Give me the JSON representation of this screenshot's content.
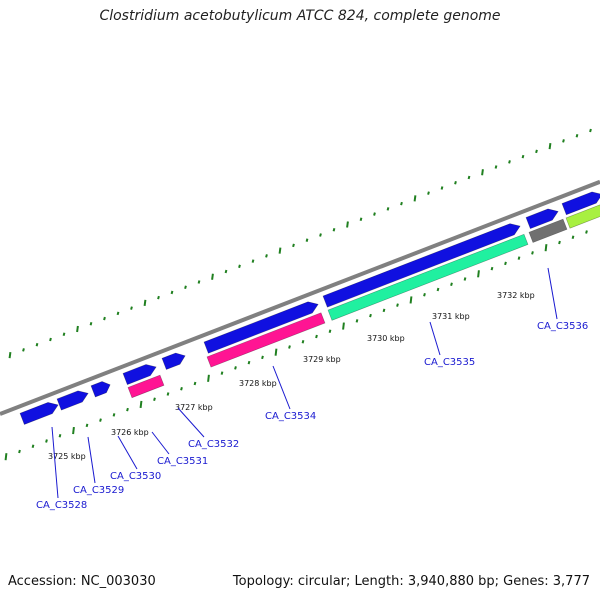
{
  "title": "Clostridium acetobutylicum ATCC 824, complete genome",
  "footer": {
    "accession": "Accession: NC_003030",
    "stats": "Topology: circular; Length: 3,940,880 bp; Genes: 3,777"
  },
  "colors": {
    "backbone": "#808080",
    "forward_cds": "#1010e0",
    "reverse_pink": "#ff1493",
    "reverse_green": "#20f0a0",
    "gray_feature": "#707070",
    "lime_feature": "#a8f040",
    "ticks": "#208020",
    "labels": "#1a1ad0"
  },
  "scale_labels": [
    "3725 kbp",
    "3726 kbp",
    "3727 kbp",
    "3728 kbp",
    "3729 kbp",
    "3730 kbp",
    "3731 kbp",
    "3732 kbp"
  ],
  "gene_labels": [
    "CA_C3528",
    "CA_C3529",
    "CA_C3530",
    "CA_C3531",
    "CA_C3532",
    "CA_C3534",
    "CA_C3535",
    "CA_C3536"
  ]
}
